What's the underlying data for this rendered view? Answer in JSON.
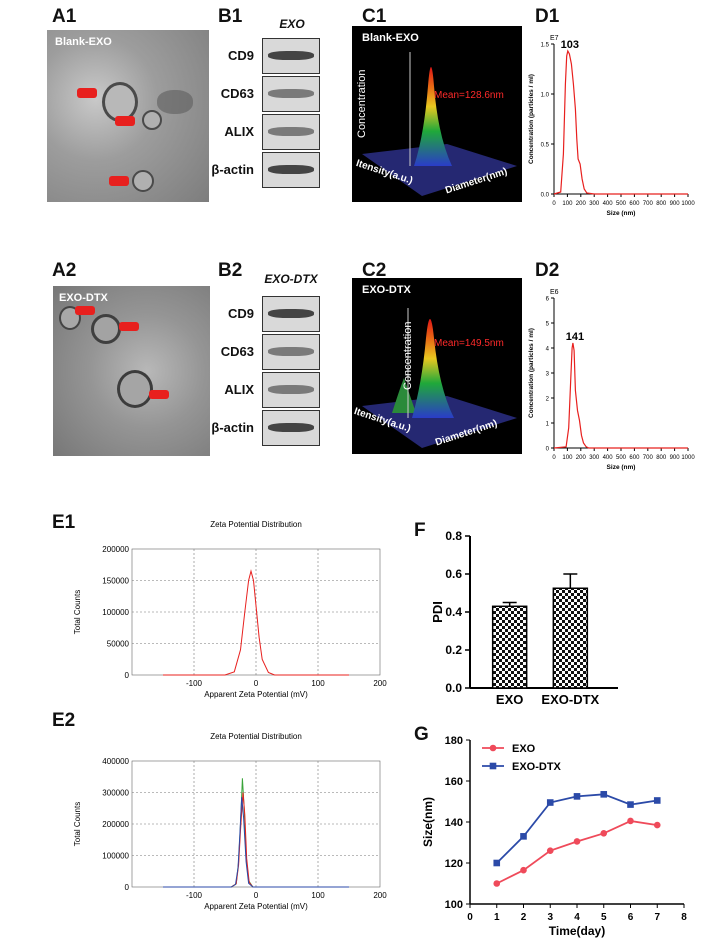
{
  "panels": {
    "A1": {
      "label": "A1",
      "tag": "Blank-EXO"
    },
    "A2": {
      "label": "A2",
      "tag": "EXO-DTX"
    },
    "B1": {
      "label": "B1",
      "header": "EXO"
    },
    "B2": {
      "label": "B2",
      "header": "EXO-DTX"
    },
    "C1": {
      "label": "C1",
      "tag": "Blank-EXO",
      "z_label": "Concentration",
      "mean": "Mean=128.6nm",
      "x_label": "Itensity(a.u.)",
      "y_label": "Diameter(nm)"
    },
    "C2": {
      "label": "C2",
      "tag": "EXO-DTX",
      "z_label": "Concentration",
      "mean": "Mean=149.5nm",
      "x_label": "Itensity(a.u.)",
      "y_label": "Diameter(nm)"
    },
    "D1": {
      "label": "D1"
    },
    "D2": {
      "label": "D2"
    },
    "E1": {
      "label": "E1"
    },
    "E2": {
      "label": "E2"
    },
    "F": {
      "label": "F"
    },
    "G": {
      "label": "G"
    }
  },
  "blot_markers": [
    "CD9",
    "CD63",
    "ALIX",
    "β-actin"
  ],
  "colors": {
    "red": "#e8201e",
    "blue": "#2b4aa8",
    "exo_red": "#ef4a5a",
    "grid": "#999999"
  },
  "chart_data": [
    {
      "id": "D1",
      "type": "line",
      "exponent": "E7",
      "peak_label": "103",
      "xlabel": "Size (nm)",
      "ylabel": "Concentration (particles / ml)",
      "xlim": [
        0,
        1000
      ],
      "ylim": [
        0,
        1.5
      ],
      "xticks": [
        "0",
        "100",
        "200",
        "300",
        "400",
        "500",
        "600",
        "700",
        "800",
        "900",
        "1000"
      ],
      "yticks": [
        "0.0",
        "0.5",
        "1.0",
        "1.5"
      ],
      "x": [
        0,
        50,
        70,
        85,
        95,
        103,
        115,
        130,
        145,
        160,
        170,
        180,
        195,
        210,
        225,
        245,
        300,
        1000
      ],
      "y": [
        0,
        0.02,
        0.4,
        1.1,
        1.38,
        1.43,
        1.4,
        1.3,
        1.1,
        0.85,
        0.55,
        0.35,
        0.3,
        0.15,
        0.05,
        0.01,
        0,
        0
      ]
    },
    {
      "id": "D2",
      "type": "line",
      "exponent": "E6",
      "peak_label": "141",
      "xlabel": "Size (nm)",
      "ylabel": "Concentration (particles / ml)",
      "xlim": [
        0,
        1000
      ],
      "ylim": [
        0,
        6
      ],
      "xticks": [
        "0",
        "100",
        "200",
        "300",
        "400",
        "500",
        "600",
        "700",
        "800",
        "900",
        "1000"
      ],
      "yticks": [
        "0",
        "1",
        "2",
        "3",
        "4",
        "5",
        "6"
      ],
      "x": [
        0,
        90,
        110,
        125,
        135,
        141,
        150,
        160,
        175,
        190,
        205,
        220,
        240,
        260,
        1000
      ],
      "y": [
        0,
        0.05,
        0.8,
        2.8,
        4.0,
        4.2,
        3.9,
        2.3,
        1.5,
        1.1,
        0.5,
        0.2,
        0.05,
        0,
        0
      ]
    },
    {
      "id": "E1",
      "type": "line",
      "title": "Zeta Potential Distribution",
      "xlabel": "Apparent Zeta Potential (mV)",
      "ylabel": "Total Counts",
      "xlim": [
        -200,
        200
      ],
      "ylim": [
        0,
        200000
      ],
      "xticks": [
        "-100",
        "0",
        "100",
        "200"
      ],
      "yticks": [
        "0",
        "50000",
        "100000",
        "150000",
        "200000"
      ],
      "series": [
        {
          "color": "#e8201e",
          "x": [
            -150,
            -50,
            -35,
            -25,
            -18,
            -12,
            -8,
            -4,
            0,
            5,
            10,
            20,
            30,
            150
          ],
          "y": [
            0,
            0,
            5000,
            40000,
            100000,
            150000,
            165000,
            150000,
            110000,
            60000,
            25000,
            4000,
            0,
            0
          ]
        }
      ]
    },
    {
      "id": "E2",
      "type": "line",
      "title": "Zeta Potential Distribution",
      "xlabel": "Apparent Zeta Potential (mV)",
      "ylabel": "Total Counts",
      "xlim": [
        -200,
        200
      ],
      "ylim": [
        0,
        400000
      ],
      "xticks": [
        "-100",
        "0",
        "100",
        "200"
      ],
      "yticks": [
        "0",
        "100000",
        "200000",
        "300000",
        "400000"
      ],
      "series": [
        {
          "color": "#3aa43a",
          "x": [
            -150,
            -40,
            -32,
            -28,
            -25,
            -22,
            -19,
            -16,
            -12,
            -5,
            150
          ],
          "y": [
            0,
            0,
            10000,
            80000,
            200000,
            345000,
            250000,
            100000,
            20000,
            0,
            0
          ]
        },
        {
          "color": "#e8201e",
          "x": [
            -150,
            -40,
            -32,
            -28,
            -25,
            -21,
            -18,
            -15,
            -11,
            -5,
            150
          ],
          "y": [
            0,
            0,
            10000,
            70000,
            180000,
            300000,
            230000,
            90000,
            15000,
            0,
            0
          ]
        },
        {
          "color": "#2b4aa8",
          "x": [
            -150,
            -40,
            -33,
            -29,
            -26,
            -23,
            -20,
            -16,
            -12,
            -5,
            150
          ],
          "y": [
            0,
            0,
            8000,
            60000,
            170000,
            285000,
            220000,
            80000,
            12000,
            0,
            0
          ]
        }
      ]
    },
    {
      "id": "F",
      "type": "bar",
      "ylabel": "PDI",
      "ylim": [
        0,
        0.8
      ],
      "yticks": [
        "0.0",
        "0.2",
        "0.4",
        "0.6",
        "0.8"
      ],
      "categories": [
        "EXO",
        "EXO-DTX"
      ],
      "values": [
        0.43,
        0.525
      ],
      "errors": [
        0.02,
        0.075
      ]
    },
    {
      "id": "G",
      "type": "line",
      "xlabel": "Time(day)",
      "ylabel": "Size(nm)",
      "xlim": [
        0,
        8
      ],
      "ylim": [
        100,
        180
      ],
      "xticks": [
        "0",
        "1",
        "2",
        "3",
        "4",
        "5",
        "6",
        "7",
        "8"
      ],
      "yticks": [
        "100",
        "120",
        "140",
        "160",
        "180"
      ],
      "legend": "top-left",
      "series": [
        {
          "name": "EXO",
          "color": "#ef4a5a",
          "marker": "circle",
          "x": [
            1,
            2,
            3,
            4,
            5,
            6,
            7
          ],
          "y": [
            110,
            116.5,
            126,
            130.5,
            134.5,
            140.5,
            138.5
          ]
        },
        {
          "name": "EXO-DTX",
          "color": "#2b4aa8",
          "marker": "square",
          "x": [
            1,
            2,
            3,
            4,
            5,
            6,
            7
          ],
          "y": [
            120,
            133,
            149.5,
            152.5,
            153.5,
            148.5,
            150.5
          ]
        }
      ]
    }
  ]
}
